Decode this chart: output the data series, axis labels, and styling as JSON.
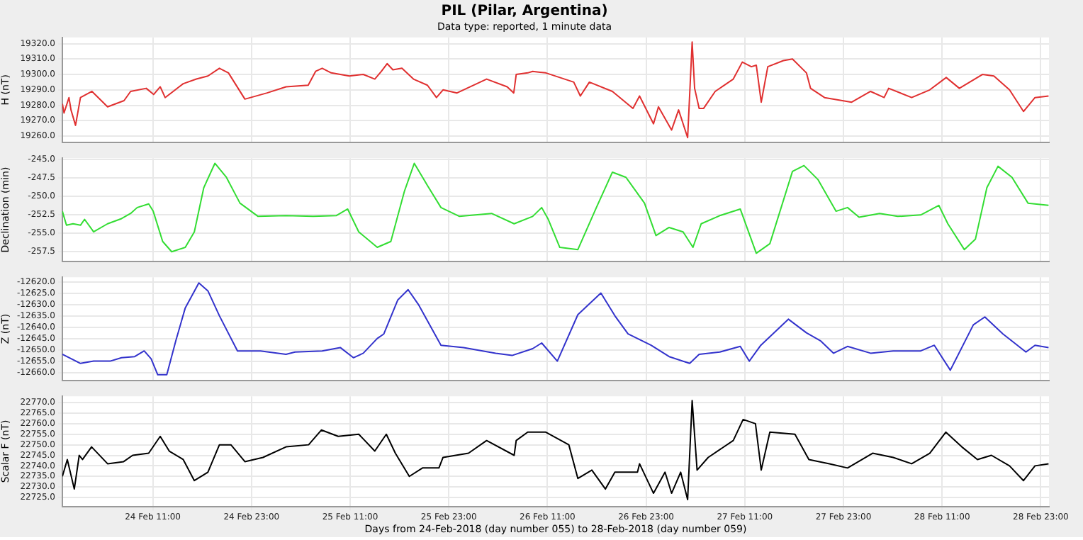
{
  "chart_data": [
    {
      "type": "line",
      "title": "PIL (Pilar, Argentina)",
      "subtitle": "Data type: reported, 1 minute data",
      "ylabel": "H (nT)",
      "color": "#e03030",
      "marker": "none",
      "grid": true,
      "tick_labels": "y",
      "xlim": [
        "2018-02-24T00:00",
        "2018-03-01T00:00"
      ],
      "xticks": [
        {
          "value": "2018-02-24T11:00",
          "label": null
        },
        {
          "value": "2018-02-24T23:00",
          "label": null
        },
        {
          "value": "2018-02-25T11:00",
          "label": null
        },
        {
          "value": "2018-02-25T23:00",
          "label": null
        },
        {
          "value": "2018-02-26T11:00",
          "label": null
        },
        {
          "value": "2018-02-26T23:00",
          "label": null
        },
        {
          "value": "2018-02-27T11:00",
          "label": null
        },
        {
          "value": "2018-02-27T23:00",
          "label": null
        },
        {
          "value": "2018-02-28T11:00",
          "label": null
        },
        {
          "value": "2018-02-28T23:00",
          "label": null
        }
      ],
      "ylim": [
        19256,
        19324
      ],
      "yticks": [
        {
          "value": 19260,
          "label": "19260.0"
        },
        {
          "value": 19270,
          "label": "19270.0"
        },
        {
          "value": 19280,
          "label": "19280.0"
        },
        {
          "value": 19290,
          "label": "19290.0"
        },
        {
          "value": 19300,
          "label": "19300.0"
        },
        {
          "value": 19310,
          "label": "19310.0"
        },
        {
          "value": 19320,
          "label": "19320.0"
        }
      ],
      "x": [
        "2018-02-24T00:00",
        "2018-02-24T00:12",
        "2018-02-24T00:48",
        "2018-02-24T01:03",
        "2018-02-24T01:36",
        "2018-02-24T02:12",
        "2018-02-24T03:36",
        "2018-02-24T05:30",
        "2018-02-24T07:30",
        "2018-02-24T08:18",
        "2018-02-24T10:12",
        "2018-02-24T11:06",
        "2018-02-24T11:54",
        "2018-02-24T12:30",
        "2018-02-24T14:42",
        "2018-02-24T16:18",
        "2018-02-24T17:42",
        "2018-02-24T19:06",
        "2018-02-24T20:12",
        "2018-02-24T22:12",
        "2018-02-25T00:54",
        "2018-02-25T03:12",
        "2018-02-25T05:54",
        "2018-02-25T06:48",
        "2018-02-25T07:36",
        "2018-02-25T08:42",
        "2018-02-25T10:54",
        "2018-02-25T12:36",
        "2018-02-25T14:00",
        "2018-02-25T14:48",
        "2018-02-25T15:30",
        "2018-02-25T16:12",
        "2018-02-25T17:18",
        "2018-02-25T18:42",
        "2018-02-25T20:24",
        "2018-02-25T21:30",
        "2018-02-25T22:18",
        "2018-02-26T00:00",
        "2018-02-26T03:36",
        "2018-02-26T06:06",
        "2018-02-26T06:54",
        "2018-02-26T07:12",
        "2018-02-26T08:36",
        "2018-02-26T09:12",
        "2018-02-26T10:48",
        "2018-02-26T14:12",
        "2018-02-26T15:00",
        "2018-02-26T16:06",
        "2018-02-26T18:54",
        "2018-02-26T21:24",
        "2018-02-26T22:12",
        "2018-02-26T23:54",
        "2018-02-27T00:30",
        "2018-02-27T02:06",
        "2018-02-27T02:57",
        "2018-02-27T04:03",
        "2018-02-27T04:36",
        "2018-02-27T04:54",
        "2018-02-27T05:27",
        "2018-02-27T06:00",
        "2018-02-27T07:24",
        "2018-02-27T09:36",
        "2018-02-27T10:42",
        "2018-02-27T11:48",
        "2018-02-27T12:24",
        "2018-02-27T13:00",
        "2018-02-27T13:48",
        "2018-02-27T15:42",
        "2018-02-27T16:48",
        "2018-02-27T18:30",
        "2018-02-27T19:00",
        "2018-02-27T20:42",
        "2018-02-28T00:00",
        "2018-02-28T02:18",
        "2018-02-28T03:57",
        "2018-02-28T04:30",
        "2018-02-28T07:18",
        "2018-02-28T09:30",
        "2018-02-28T11:30",
        "2018-02-28T13:06",
        "2018-02-28T15:54",
        "2018-02-28T17:18",
        "2018-02-28T19:12",
        "2018-02-28T20:54",
        "2018-02-28T22:18",
        "2018-02-28T23:57"
      ],
      "values": [
        19281,
        19275,
        19285,
        19277,
        19267,
        19285,
        19289,
        19279,
        19283,
        19289,
        19291,
        19287,
        19292,
        19285,
        19294,
        19297,
        19299,
        19304,
        19301,
        19284,
        19288,
        19292,
        19293,
        19302,
        19304,
        19301,
        19299,
        19300,
        19297,
        19302,
        19307,
        19303,
        19304,
        19297,
        19293,
        19285,
        19290,
        19288,
        19297,
        19292,
        19288,
        19300,
        19301,
        19302,
        19301,
        19295,
        19286,
        19295,
        19289,
        19278,
        19286,
        19268,
        19279,
        19264,
        19277,
        19259,
        19321,
        19291,
        19278,
        19278,
        19289,
        19297,
        19308,
        19305,
        19306,
        19282,
        19305,
        19309,
        19310,
        19301,
        19291,
        19285,
        19282,
        19289,
        19285,
        19291,
        19285,
        19290,
        19298,
        19291,
        19300,
        19299,
        19290,
        19276,
        19285,
        19286
      ]
    },
    {
      "type": "line",
      "ylabel": "Declination (min)",
      "color": "#33dd33",
      "marker": "none",
      "grid": true,
      "tick_labels": "y",
      "xlim": [
        "2018-02-24T00:00",
        "2018-03-01T00:00"
      ],
      "xticks": [
        {
          "value": "2018-02-24T11:00",
          "label": null
        },
        {
          "value": "2018-02-24T23:00",
          "label": null
        },
        {
          "value": "2018-02-25T11:00",
          "label": null
        },
        {
          "value": "2018-02-25T23:00",
          "label": null
        },
        {
          "value": "2018-02-26T11:00",
          "label": null
        },
        {
          "value": "2018-02-26T23:00",
          "label": null
        },
        {
          "value": "2018-02-27T11:00",
          "label": null
        },
        {
          "value": "2018-02-27T23:00",
          "label": null
        },
        {
          "value": "2018-02-28T11:00",
          "label": null
        },
        {
          "value": "2018-02-28T23:00",
          "label": null
        }
      ],
      "ylim": [
        -258.8,
        -244.8
      ],
      "yticks": [
        -257.5,
        {
          "value": -255,
          "label": "-255.0"
        },
        -252.5,
        {
          "value": -250,
          "label": "-250.0"
        },
        -247.5,
        {
          "value": -245,
          "label": "-245.0"
        }
      ],
      "x": [
        "2018-02-24T00:00",
        "2018-02-24T00:30",
        "2018-02-24T01:18",
        "2018-02-24T02:12",
        "2018-02-24T02:42",
        "2018-02-24T03:48",
        "2018-02-24T05:30",
        "2018-02-24T07:12",
        "2018-02-24T08:18",
        "2018-02-24T09:06",
        "2018-02-24T10:30",
        "2018-02-24T11:03",
        "2018-02-24T12:12",
        "2018-02-24T13:18",
        "2018-02-24T14:57",
        "2018-02-24T16:03",
        "2018-02-24T17:12",
        "2018-02-24T18:33",
        "2018-02-24T19:57",
        "2018-02-24T21:36",
        "2018-02-24T23:48",
        "2018-02-25T03:12",
        "2018-02-25T06:30",
        "2018-02-25T09:18",
        "2018-02-25T10:42",
        "2018-02-25T12:03",
        "2018-02-25T14:18",
        "2018-02-25T15:57",
        "2018-02-25T17:36",
        "2018-02-25T18:48",
        "2018-02-25T20:24",
        "2018-02-25T22:03",
        "2018-02-26T00:18",
        "2018-02-26T04:12",
        "2018-02-26T06:57",
        "2018-02-26T09:12",
        "2018-02-26T10:18",
        "2018-02-26T11:06",
        "2018-02-26T12:30",
        "2018-02-26T14:42",
        "2018-02-26T16:57",
        "2018-02-26T18:54",
        "2018-02-26T20:33",
        "2018-02-26T22:48",
        "2018-02-27T00:12",
        "2018-02-27T01:48",
        "2018-02-27T03:30",
        "2018-02-27T04:42",
        "2018-02-27T05:42",
        "2018-02-27T07:57",
        "2018-02-27T10:27",
        "2018-02-27T12:24",
        "2018-02-27T14:03",
        "2018-02-27T16:48",
        "2018-02-27T18:12",
        "2018-02-27T19:54",
        "2018-02-27T22:06",
        "2018-02-27T23:30",
        "2018-02-28T00:54",
        "2018-02-28T03:24",
        "2018-02-28T05:36",
        "2018-02-28T08:24",
        "2018-02-28T10:36",
        "2018-02-28T11:42",
        "2018-02-28T13:42",
        "2018-02-28T15:03",
        "2018-02-28T16:27",
        "2018-02-28T17:48",
        "2018-02-28T19:30",
        "2018-02-28T21:27",
        "2018-02-28T23:57"
      ],
      "values": [
        -252.0,
        -253.9,
        -253.7,
        -253.9,
        -253.1,
        -254.8,
        -253.7,
        -253.0,
        -252.3,
        -251.5,
        -251.0,
        -252.0,
        -256.1,
        -257.5,
        -256.9,
        -254.8,
        -248.8,
        -245.5,
        -247.4,
        -250.9,
        -252.7,
        -252.6,
        -252.7,
        -252.6,
        -251.7,
        -254.8,
        -256.9,
        -256.1,
        -249.3,
        -245.5,
        -248.5,
        -251.5,
        -252.7,
        -252.3,
        -253.7,
        -252.7,
        -251.5,
        -253.1,
        -256.9,
        -257.2,
        -251.5,
        -246.7,
        -247.4,
        -250.9,
        -255.3,
        -254.2,
        -254.8,
        -256.9,
        -253.7,
        -252.6,
        -251.7,
        -257.7,
        -256.4,
        -246.6,
        -245.8,
        -247.7,
        -252.0,
        -251.5,
        -252.8,
        -252.3,
        -252.7,
        -252.5,
        -251.2,
        -253.7,
        -257.2,
        -255.8,
        -248.8,
        -245.9,
        -247.4,
        -250.9,
        -251.2
      ]
    },
    {
      "type": "line",
      "ylabel": "Z (nT)",
      "color": "#3333cc",
      "marker": "none",
      "grid": true,
      "tick_labels": "y",
      "xlim": [
        "2018-02-24T00:00",
        "2018-03-01T00:00"
      ],
      "xticks": [
        {
          "value": "2018-02-24T11:00",
          "label": null
        },
        {
          "value": "2018-02-24T23:00",
          "label": null
        },
        {
          "value": "2018-02-25T11:00",
          "label": null
        },
        {
          "value": "2018-02-25T23:00",
          "label": null
        },
        {
          "value": "2018-02-26T11:00",
          "label": null
        },
        {
          "value": "2018-02-26T23:00",
          "label": null
        },
        {
          "value": "2018-02-27T11:00",
          "label": null
        },
        {
          "value": "2018-02-27T23:00",
          "label": null
        },
        {
          "value": "2018-02-28T11:00",
          "label": null
        },
        {
          "value": "2018-02-28T23:00",
          "label": null
        }
      ],
      "ylim": [
        -12663.5,
        -12618
      ],
      "yticks": [
        {
          "value": -12660,
          "label": "-12660.0"
        },
        {
          "value": -12655,
          "label": "-12655.0"
        },
        {
          "value": -12650,
          "label": "-12650.0"
        },
        {
          "value": -12645,
          "label": "-12645.0"
        },
        {
          "value": -12640,
          "label": "-12640.0"
        },
        {
          "value": -12635,
          "label": "-12635.0"
        },
        {
          "value": -12630,
          "label": "-12630.0"
        },
        {
          "value": -12625,
          "label": "-12625.0"
        },
        {
          "value": -12620,
          "label": "-12620.0"
        }
      ],
      "x": [
        "2018-02-24T00:00",
        "2018-02-24T02:12",
        "2018-02-24T03:48",
        "2018-02-24T05:48",
        "2018-02-24T07:12",
        "2018-02-24T08:48",
        "2018-02-24T09:57",
        "2018-02-24T10:48",
        "2018-02-24T11:36",
        "2018-02-24T12:42",
        "2018-02-24T13:48",
        "2018-02-24T14:57",
        "2018-02-24T16:36",
        "2018-02-24T17:42",
        "2018-02-24T19:06",
        "2018-02-24T21:18",
        "2018-02-25T00:06",
        "2018-02-25T03:12",
        "2018-02-25T04:18",
        "2018-02-25T07:36",
        "2018-02-25T09:48",
        "2018-02-25T11:24",
        "2018-02-25T12:36",
        "2018-02-25T14:18",
        "2018-02-25T15:06",
        "2018-02-25T16:48",
        "2018-02-25T18:03",
        "2018-02-25T19:18",
        "2018-02-25T22:03",
        "2018-02-26T00:48",
        "2018-02-26T04:42",
        "2018-02-26T06:42",
        "2018-02-26T09:12",
        "2018-02-26T10:18",
        "2018-02-26T12:12",
        "2018-02-26T14:42",
        "2018-02-26T17:30",
        "2018-02-26T19:12",
        "2018-02-26T20:48",
        "2018-02-26T23:36",
        "2018-02-27T01:48",
        "2018-02-27T04:18",
        "2018-02-27T05:27",
        "2018-02-27T07:57",
        "2018-02-27T10:27",
        "2018-02-27T11:33",
        "2018-02-27T12:57",
        "2018-02-27T16:18",
        "2018-02-27T18:30",
        "2018-02-27T20:12",
        "2018-02-27T21:48",
        "2018-02-27T23:30",
        "2018-02-28T02:18",
        "2018-02-28T05:03",
        "2018-02-28T08:24",
        "2018-02-28T10:03",
        "2018-02-28T12:00",
        "2018-02-28T14:48",
        "2018-02-28T16:12",
        "2018-02-28T18:24",
        "2018-02-28T21:12",
        "2018-02-28T22:18",
        "2018-02-28T23:57"
      ],
      "values": [
        -12652,
        -12656,
        -12655,
        -12655,
        -12653.5,
        -12653,
        -12650.5,
        -12654,
        -12661,
        -12661,
        -12646,
        -12631.5,
        -12620.5,
        -12624,
        -12635,
        -12650.5,
        -12650.5,
        -12652,
        -12651,
        -12650.5,
        -12649,
        -12653.5,
        -12651.5,
        -12645,
        -12643,
        -12628,
        -12623.5,
        -12630,
        -12648,
        -12649,
        -12651.5,
        -12652.5,
        -12649.5,
        -12647,
        -12655,
        -12634.5,
        -12625,
        -12635,
        -12643,
        -12648,
        -12653,
        -12656,
        -12652,
        -12651,
        -12648.5,
        -12655,
        -12648,
        -12636.5,
        -12642.5,
        -12646,
        -12651.5,
        -12648.5,
        -12651.5,
        -12650.5,
        -12650.5,
        -12648,
        -12659,
        -12639,
        -12635.5,
        -12643,
        -12651,
        -12648,
        -12649
      ]
    },
    {
      "type": "line",
      "ylabel": "Scalar F (nT)",
      "xlabel": "Days from 24-Feb-2018 (day number 055) to 28-Feb-2018 (day number 059)",
      "color": "#000000",
      "marker": "none",
      "grid": true,
      "xlim": [
        "2018-02-24T00:00",
        "2018-03-01T00:00"
      ],
      "xticks": [
        {
          "value": "2018-02-24T11:00",
          "label": "24 Feb 11:00"
        },
        {
          "value": "2018-02-24T23:00",
          "label": "24 Feb 23:00"
        },
        {
          "value": "2018-02-25T11:00",
          "label": "25 Feb 11:00"
        },
        {
          "value": "2018-02-25T23:00",
          "label": "25 Feb 23:00"
        },
        {
          "value": "2018-02-26T11:00",
          "label": "26 Feb 11:00"
        },
        {
          "value": "2018-02-26T23:00",
          "label": "26 Feb 23:00"
        },
        {
          "value": "2018-02-27T11:00",
          "label": "27 Feb 11:00"
        },
        {
          "value": "2018-02-27T23:00",
          "label": "27 Feb 23:00"
        },
        {
          "value": "2018-02-28T11:00",
          "label": "28 Feb 11:00"
        },
        {
          "value": "2018-02-28T23:00",
          "label": "28 Feb 23:00"
        }
      ],
      "ylim": [
        22720.7,
        22773
      ],
      "yticks": [
        {
          "value": 22725,
          "label": "22725.0"
        },
        {
          "value": 22730,
          "label": "22730.0"
        },
        {
          "value": 22735,
          "label": "22735.0"
        },
        {
          "value": 22740,
          "label": "22740.0"
        },
        {
          "value": 22745,
          "label": "22745.0"
        },
        {
          "value": 22750,
          "label": "22750.0"
        },
        {
          "value": 22755,
          "label": "22755.0"
        },
        {
          "value": 22760,
          "label": "22760.0"
        },
        {
          "value": 22765,
          "label": "22765.0"
        },
        {
          "value": 22770,
          "label": "22770.0"
        }
      ],
      "x": [
        "2018-02-24T00:00",
        "2018-02-24T00:36",
        "2018-02-24T01:27",
        "2018-02-24T02:03",
        "2018-02-24T02:27",
        "2018-02-24T03:33",
        "2018-02-24T05:30",
        "2018-02-24T07:27",
        "2018-02-24T08:33",
        "2018-02-24T10:30",
        "2018-02-24T11:54",
        "2018-02-24T13:00",
        "2018-02-24T14:42",
        "2018-02-24T16:03",
        "2018-02-24T17:42",
        "2018-02-24T19:06",
        "2018-02-24T20:30",
        "2018-02-24T22:12",
        "2018-02-25T00:24",
        "2018-02-25T03:12",
        "2018-02-25T05:57",
        "2018-02-25T07:30",
        "2018-02-25T09:33",
        "2018-02-25T12:03",
        "2018-02-25T14:00",
        "2018-02-25T15:24",
        "2018-02-25T16:30",
        "2018-02-25T18:12",
        "2018-02-25T19:48",
        "2018-02-25T21:48",
        "2018-02-25T22:18",
        "2018-02-26T01:24",
        "2018-02-26T03:36",
        "2018-02-26T06:57",
        "2018-02-26T07:12",
        "2018-02-26T08:36",
        "2018-02-26T09:12",
        "2018-02-26T10:48",
        "2018-02-26T13:36",
        "2018-02-26T14:42",
        "2018-02-26T16:24",
        "2018-02-26T18:03",
        "2018-02-26T19:12",
        "2018-02-26T21:57",
        "2018-02-26T22:12",
        "2018-02-26T23:54",
        "2018-02-27T01:18",
        "2018-02-27T02:06",
        "2018-02-27T03:12",
        "2018-02-27T04:03",
        "2018-02-27T04:36",
        "2018-02-27T05:12",
        "2018-02-27T06:33",
        "2018-02-27T09:36",
        "2018-02-27T10:48",
        "2018-02-27T12:18",
        "2018-02-27T13:00",
        "2018-02-27T14:03",
        "2018-02-27T17:06",
        "2018-02-27T18:48",
        "2018-02-27T21:18",
        "2018-02-27T23:30",
        "2018-02-28T02:33",
        "2018-02-28T05:03",
        "2018-02-28T07:18",
        "2018-02-28T09:30",
        "2018-02-28T11:27",
        "2018-02-28T13:24",
        "2018-02-28T15:18",
        "2018-02-28T17:00",
        "2018-02-28T19:12",
        "2018-02-28T20:54",
        "2018-02-28T22:18",
        "2018-02-28T23:57"
      ],
      "values": [
        22735,
        22743,
        22729,
        22745,
        22743,
        22749,
        22741,
        22742,
        22745,
        22746,
        22754,
        22747,
        22743,
        22733,
        22737,
        22750,
        22750,
        22742,
        22744,
        22749,
        22750,
        22757,
        22754,
        22755,
        22747,
        22755,
        22746,
        22735,
        22739,
        22739,
        22744,
        22746,
        22752,
        22745,
        22752,
        22756,
        22756,
        22756,
        22750,
        22734,
        22738,
        22729,
        22737,
        22737,
        22741,
        22727,
        22737,
        22727,
        22737,
        22724,
        22771,
        22738,
        22744,
        22752,
        22762,
        22760,
        22738,
        22756,
        22755,
        22743,
        22741,
        22739,
        22746,
        22744,
        22741,
        22746,
        22756,
        22749,
        22743,
        22745,
        22740,
        22733,
        22740,
        22741
      ]
    }
  ]
}
